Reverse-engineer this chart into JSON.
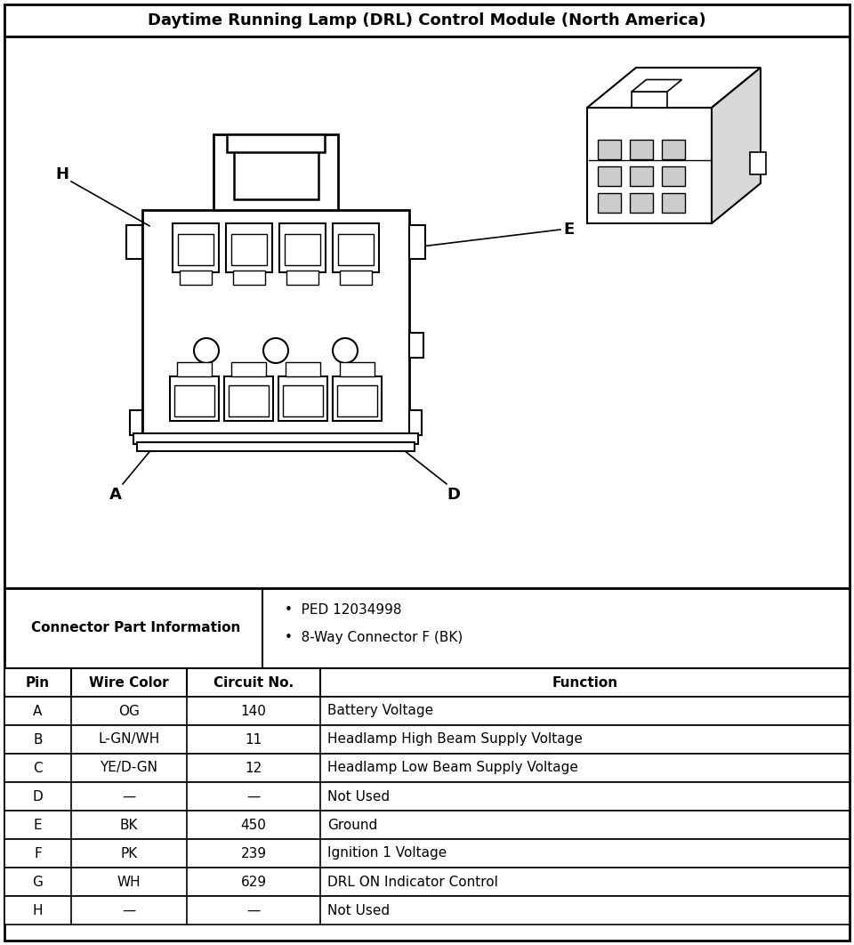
{
  "title": "Daytime Running Lamp (DRL) Control Module (North America)",
  "connector_part_label": "Connector Part Information",
  "connector_part_items": [
    "PED 12034998",
    "8-Way Connector F (BK)"
  ],
  "table_headers": [
    "Pin",
    "Wire Color",
    "Circuit No.",
    "Function"
  ],
  "table_rows": [
    [
      "A",
      "OG",
      "140",
      "Battery Voltage"
    ],
    [
      "B",
      "L-GN/WH",
      "11",
      "Headlamp High Beam Supply Voltage"
    ],
    [
      "C",
      "YE/D-GN",
      "12",
      "Headlamp Low Beam Supply Voltage"
    ],
    [
      "D",
      "—",
      "—",
      "Not Used"
    ],
    [
      "E",
      "BK",
      "450",
      "Ground"
    ],
    [
      "F",
      "PK",
      "239",
      "Ignition 1 Voltage"
    ],
    [
      "G",
      "WH",
      "629",
      "DRL ON Indicator Control"
    ],
    [
      "H",
      "—",
      "—",
      "Not Used"
    ]
  ],
  "bg_color": "#ffffff",
  "border_color": "#000000",
  "text_color": "#000000",
  "title_fontsize": 13,
  "body_fontsize": 10,
  "header_fontsize": 10
}
